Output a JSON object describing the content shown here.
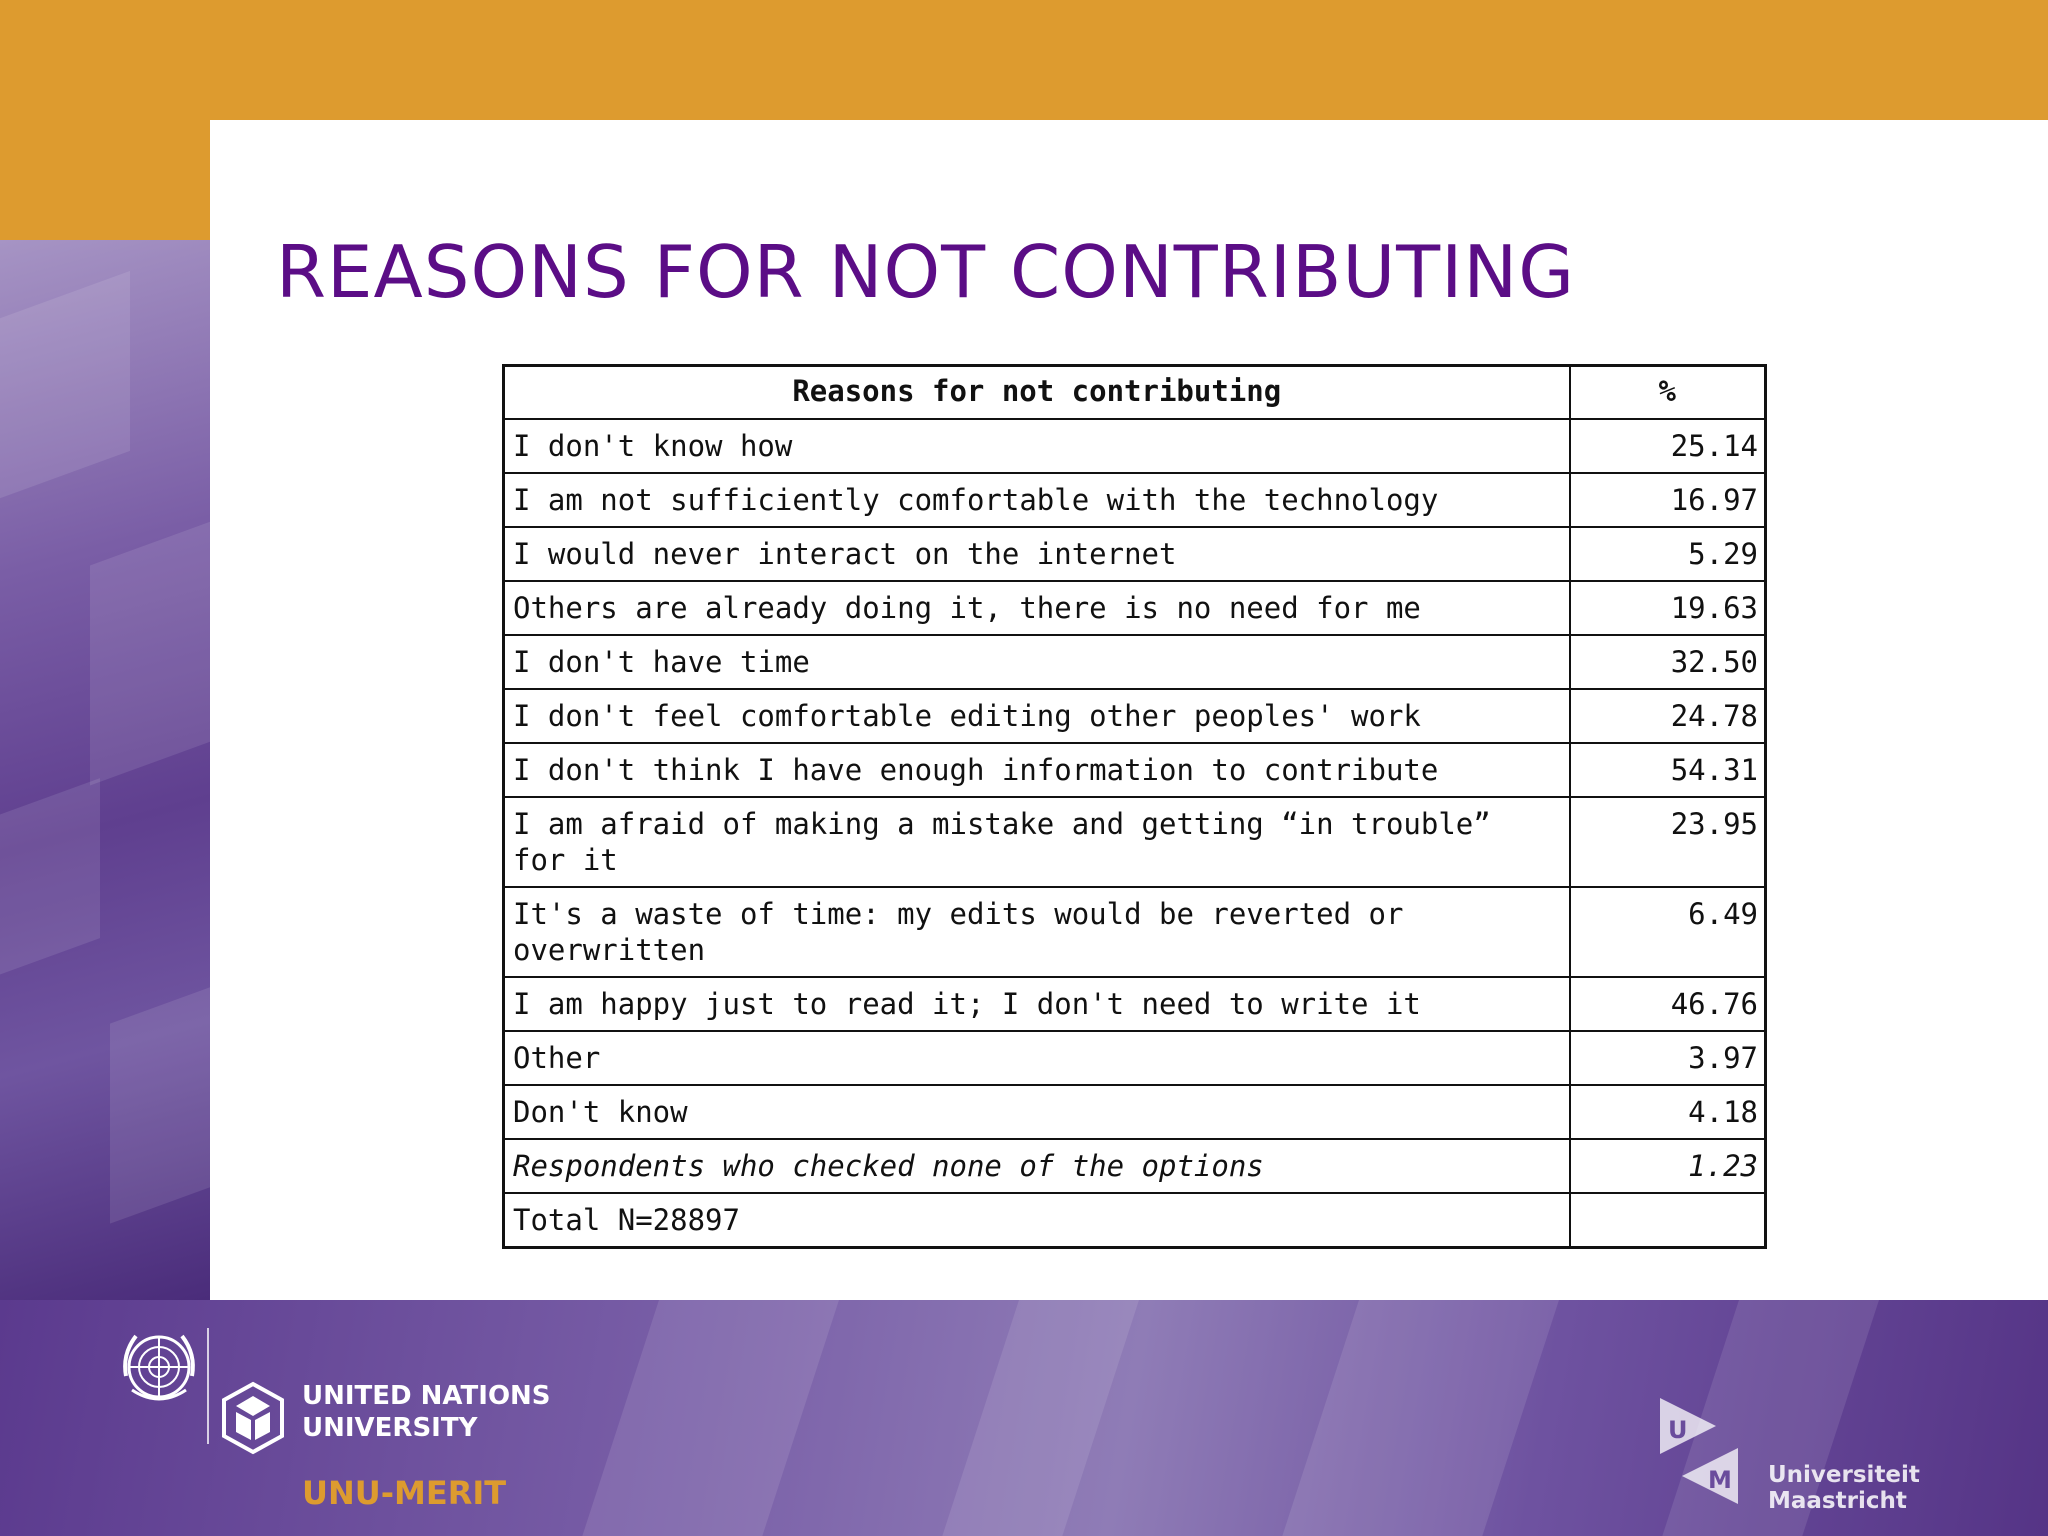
{
  "slide": {
    "title": "REASONS FOR NOT CONTRIBUTING"
  },
  "table": {
    "headers": [
      "Reasons for not contributing",
      "%"
    ],
    "rows": [
      {
        "reason": "I don't know how",
        "percent": "25.14"
      },
      {
        "reason": "I am not sufficiently comfortable with the technology",
        "percent": "16.97"
      },
      {
        "reason": "I would never interact on the internet",
        "percent": "5.29"
      },
      {
        "reason": "Others are already doing it, there is no need for me",
        "percent": "19.63"
      },
      {
        "reason": "I don't have time",
        "percent": "32.50"
      },
      {
        "reason": "I don't feel comfortable editing other peoples' work",
        "percent": "24.78"
      },
      {
        "reason": "I don't think I have enough information to contribute",
        "percent": "54.31"
      },
      {
        "reason": "I am afraid of making a mistake and getting “in trouble” for it",
        "percent": "23.95"
      },
      {
        "reason": "It's a waste of time: my edits would be reverted or overwritten",
        "percent": "6.49"
      },
      {
        "reason": "I am happy just to read it; I don't need to write it",
        "percent": "46.76"
      },
      {
        "reason": "Other",
        "percent": "3.97"
      },
      {
        "reason": "Don't know",
        "percent": "4.18"
      },
      {
        "reason": "Respondents who checked none of the options",
        "percent": "1.23"
      },
      {
        "reason": "Total N=28897",
        "percent": ""
      }
    ]
  },
  "footer": {
    "unu_line1": "UNITED NATIONS",
    "unu_line2": "UNIVERSITY",
    "merit": "UNU-MERIT",
    "um_label": "Universiteit Maastricht",
    "um_mark_top": "U",
    "um_mark_bottom": "M"
  },
  "colors": {
    "orange": "#dd9b2f",
    "title_purple": "#5b0d86",
    "band_purple": "#6a4c9c"
  }
}
